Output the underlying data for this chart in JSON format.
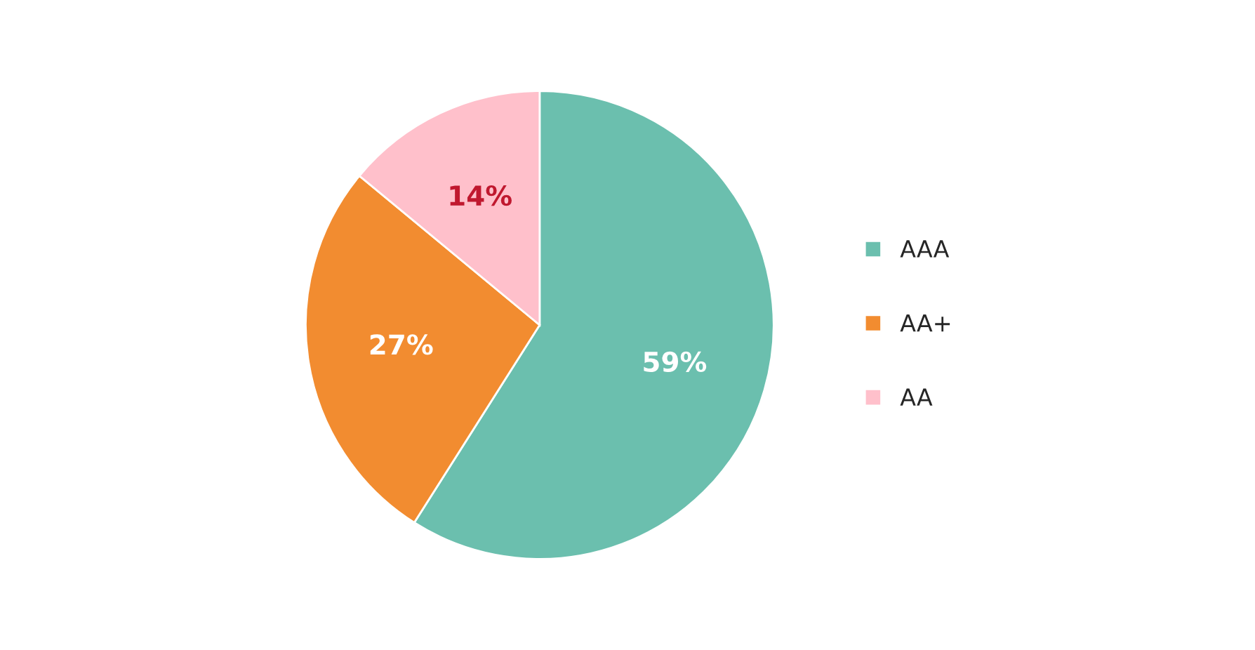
{
  "chart_data": {
    "type": "pie",
    "categories": [
      "AAA",
      "AA+",
      "AA"
    ],
    "values": [
      59,
      27,
      14
    ],
    "colors": [
      "#6bbfae",
      "#f28c30",
      "#ffc0cb"
    ],
    "value_labels": [
      "59%",
      "27%",
      "14%"
    ],
    "legend": "right"
  }
}
